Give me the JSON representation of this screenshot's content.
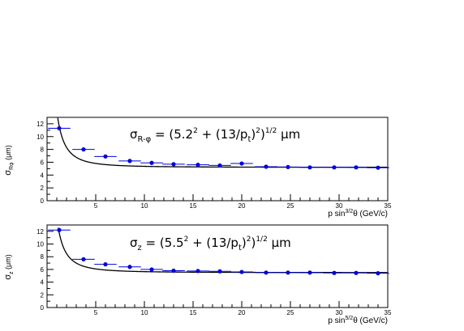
{
  "chart_data": [
    {
      "type": "scatter",
      "panel": "top",
      "ylabel_main": "σ",
      "ylabel_sub": "Rφ",
      "ylabel_unit": "(μm)",
      "xlabel_main": "p sin",
      "xlabel_sup": "3/2",
      "xlabel_tail": "θ (GeV/c)",
      "annotation": {
        "sym": "σ",
        "sub": "R-φ",
        "pre": "= (5.2",
        "sup1": "2",
        "mid": " + (13/p",
        "sub2": "t",
        "post": ")",
        "sup2": "2",
        "close": ")",
        "sup3": "1/2",
        "unit": " μm"
      },
      "curve": {
        "a": 5.2,
        "b": 13
      },
      "xlim": [
        0,
        35
      ],
      "ylim": [
        0,
        13
      ],
      "xticks": [
        "5",
        "10",
        "15",
        "20",
        "25",
        "30",
        "35"
      ],
      "yticks": [
        "0",
        "2",
        "4",
        "6",
        "8",
        "10",
        "12"
      ],
      "series": [
        {
          "x": [
            1.25,
            3.75,
            6.0,
            8.5,
            10.75,
            13.0,
            15.5,
            17.75,
            20.0,
            22.5,
            24.75,
            27.0,
            29.5,
            31.75,
            34.0
          ],
          "y": [
            11.3,
            8.0,
            6.9,
            6.2,
            5.9,
            5.7,
            5.6,
            5.5,
            5.8,
            5.3,
            5.25,
            5.2,
            5.2,
            5.2,
            5.15
          ],
          "xerr": 1.15
        }
      ]
    },
    {
      "type": "scatter",
      "panel": "bottom",
      "ylabel_main": "σ",
      "ylabel_sub": "z",
      "ylabel_unit": "(μm)",
      "xlabel_main": "p sin",
      "xlabel_sup": "5/2",
      "xlabel_tail": "θ (GeV/c)",
      "annotation": {
        "sym": "σ",
        "sub": "z",
        "pre": "= (5.5",
        "sup1": "2",
        "mid": " + (13/p",
        "sub2": "t",
        "post": ")",
        "sup2": "2",
        "close": ")",
        "sup3": "1/2",
        "unit": " μm"
      },
      "curve": {
        "a": 5.5,
        "b": 13
      },
      "xlim": [
        0,
        35
      ],
      "ylim": [
        0,
        13
      ],
      "xticks": [
        "5",
        "10",
        "15",
        "20",
        "25",
        "30",
        "35"
      ],
      "yticks": [
        "0",
        "2",
        "4",
        "6",
        "8",
        "10",
        "12"
      ],
      "series": [
        {
          "x": [
            1.25,
            3.75,
            6.0,
            8.5,
            10.75,
            13.0,
            15.5,
            17.75,
            20.0,
            22.5,
            24.75,
            27.0,
            29.5,
            31.75,
            34.0
          ],
          "y": [
            12.2,
            7.6,
            6.8,
            6.4,
            6.0,
            5.8,
            5.75,
            5.7,
            5.6,
            5.5,
            5.5,
            5.5,
            5.45,
            5.45,
            5.4
          ],
          "xerr": 1.15
        }
      ]
    }
  ],
  "colors": {
    "points": "#0000dd",
    "curve": "#000000",
    "frame": "#000000"
  }
}
